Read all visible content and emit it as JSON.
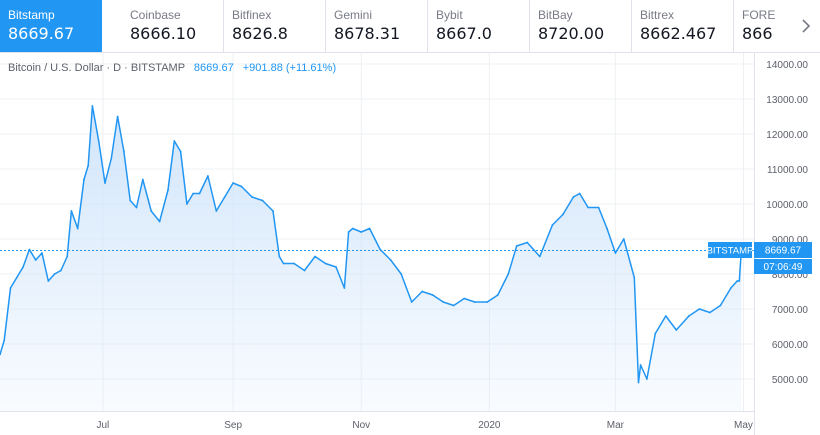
{
  "tabs": [
    {
      "name": "Bitstamp",
      "price": "8669.67"
    },
    {
      "name": "Coinbase",
      "price": "8666.10"
    },
    {
      "name": "Bitfinex",
      "price": "8626.8"
    },
    {
      "name": "Gemini",
      "price": "8678.31"
    },
    {
      "name": "Bybit",
      "price": "8667.0"
    },
    {
      "name": "BitBay",
      "price": "8720.00"
    },
    {
      "name": "Bittrex",
      "price": "8662.467"
    },
    {
      "name": "FORE",
      "price": "866"
    }
  ],
  "next_icon": "chevron-right-icon",
  "legend": {
    "symbol": "Bitcoin / U.S. Dollar · D · BITSTAMP",
    "last": "8669.67",
    "change": "+901.88 (+11.61%)"
  },
  "price_label": {
    "name": "BITSTAMP",
    "price": "8669.67",
    "countdown": "07:06:49"
  },
  "colors": {
    "accent": "#2196f3",
    "line": "#2196f3",
    "fill_top": "#cfe4fb",
    "grid": "#eef0f3",
    "axis_text": "#5d606b"
  },
  "chart_data": {
    "type": "area",
    "title": "Bitcoin / U.S. Dollar · D · BITSTAMP",
    "xlabel": "",
    "ylabel": "",
    "ylim": [
      4300,
      14200
    ],
    "xlim": [
      "2019-05-13",
      "2020-05-06"
    ],
    "x_ticks": [
      {
        "date": "2019-07-01",
        "label": "Jul"
      },
      {
        "date": "2019-09-01",
        "label": "Sep"
      },
      {
        "date": "2019-11-01",
        "label": "Nov"
      },
      {
        "date": "2020-01-01",
        "label": "2020"
      },
      {
        "date": "2020-03-01",
        "label": "Mar"
      },
      {
        "date": "2020-05-01",
        "label": "May"
      }
    ],
    "y_ticks": [
      5000,
      6000,
      7000,
      8000,
      9000,
      10000,
      11000,
      12000,
      13000,
      14000
    ],
    "y_tick_labels": [
      "5000.00",
      "6000.00",
      "7000.00",
      "8000.00",
      "9000.00",
      "10000.00",
      "11000.00",
      "12000.00",
      "13000.00",
      "14000.00"
    ],
    "reference_value": 8669.67,
    "grid": true,
    "series": [
      {
        "dates": [
          "2019-05-13",
          "2019-05-15",
          "2019-05-18",
          "2019-05-21",
          "2019-05-24",
          "2019-05-27",
          "2019-05-30",
          "2019-06-02",
          "2019-06-05",
          "2019-06-08",
          "2019-06-11",
          "2019-06-14",
          "2019-06-16",
          "2019-06-19",
          "2019-06-22",
          "2019-06-24",
          "2019-06-26",
          "2019-06-29",
          "2019-07-02",
          "2019-07-05",
          "2019-07-08",
          "2019-07-11",
          "2019-07-14",
          "2019-07-17",
          "2019-07-20",
          "2019-07-24",
          "2019-07-28",
          "2019-08-01",
          "2019-08-04",
          "2019-08-07",
          "2019-08-10",
          "2019-08-13",
          "2019-08-16",
          "2019-08-20",
          "2019-08-24",
          "2019-08-28",
          "2019-09-01",
          "2019-09-05",
          "2019-09-10",
          "2019-09-15",
          "2019-09-20",
          "2019-09-23",
          "2019-09-25",
          "2019-09-30",
          "2019-10-05",
          "2019-10-10",
          "2019-10-15",
          "2019-10-20",
          "2019-10-24",
          "2019-10-26",
          "2019-10-28",
          "2019-11-01",
          "2019-11-05",
          "2019-11-10",
          "2019-11-15",
          "2019-11-20",
          "2019-11-25",
          "2019-11-30",
          "2019-12-05",
          "2019-12-10",
          "2019-12-15",
          "2019-12-20",
          "2019-12-25",
          "2019-12-31",
          "2020-01-05",
          "2020-01-10",
          "2020-01-14",
          "2020-01-19",
          "2020-01-25",
          "2020-01-31",
          "2020-02-05",
          "2020-02-10",
          "2020-02-13",
          "2020-02-17",
          "2020-02-22",
          "2020-02-26",
          "2020-03-01",
          "2020-03-05",
          "2020-03-10",
          "2020-03-12",
          "2020-03-13",
          "2020-03-16",
          "2020-03-20",
          "2020-03-25",
          "2020-03-30",
          "2020-04-05",
          "2020-04-10",
          "2020-04-15",
          "2020-04-20",
          "2020-04-25",
          "2020-04-28",
          "2020-04-29",
          "2020-04-30"
        ],
        "values": [
          5700,
          6100,
          7600,
          7900,
          8200,
          8700,
          8400,
          8600,
          7800,
          8000,
          8100,
          8500,
          9800,
          9300,
          10700,
          11100,
          12800,
          11800,
          10600,
          11300,
          12500,
          11500,
          10100,
          9900,
          10700,
          9800,
          9500,
          10400,
          11800,
          11500,
          10000,
          10300,
          10300,
          10800,
          9800,
          10200,
          10600,
          10500,
          10200,
          10100,
          9800,
          8500,
          8300,
          8300,
          8100,
          8500,
          8300,
          8200,
          7600,
          9200,
          9300,
          9200,
          9300,
          8700,
          8400,
          8000,
          7200,
          7500,
          7400,
          7200,
          7100,
          7300,
          7200,
          7200,
          7400,
          8000,
          8800,
          8900,
          8500,
          9400,
          9700,
          10200,
          10300,
          9900,
          9900,
          9300,
          8600,
          9000,
          7900,
          4900,
          5400,
          5000,
          6300,
          6800,
          6400,
          6800,
          7000,
          6900,
          7100,
          7600,
          7800,
          7800,
          8700
        ]
      }
    ]
  }
}
